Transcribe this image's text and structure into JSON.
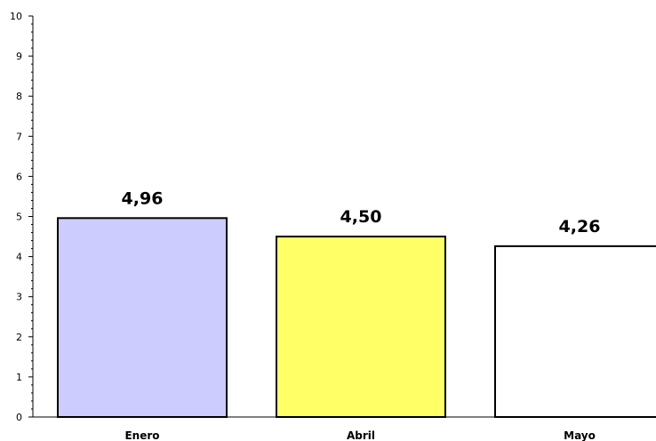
{
  "chart_data": {
    "type": "bar",
    "title": "",
    "xlabel": "",
    "ylabel": "",
    "categories": [
      "Enero",
      "Abril",
      "Mayo"
    ],
    "values": [
      4.96,
      4.5,
      4.26
    ],
    "data_labels": [
      "4,96",
      "4,50",
      "4,26"
    ],
    "bar_colors": [
      "#ccccff",
      "#ffff66",
      "#ffffff"
    ],
    "bar_outline_color": "#000000",
    "ylim": [
      0,
      10
    ],
    "y_ticks": [
      0,
      1,
      2,
      3,
      4,
      5,
      6,
      7,
      8,
      9,
      10
    ],
    "y_minor_ticks_per_major": 5,
    "grid": false,
    "legend": "none"
  }
}
